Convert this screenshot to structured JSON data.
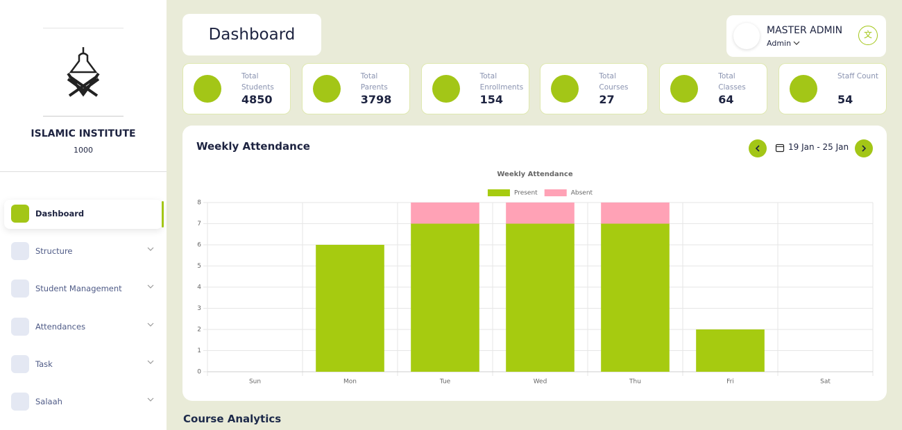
{
  "sidebar": {
    "institute_name": "ISLAMIC INSTITUTE",
    "institute_code": "1000",
    "menu": [
      "Dashboard",
      "Structure",
      "Student Management",
      "Attendances",
      "Task",
      "Salaah"
    ]
  },
  "header": {
    "title": "Dashboard",
    "user_name": "MASTER ADMIN",
    "user_role": "Admin"
  },
  "stats": [
    {
      "label": "Total Students",
      "value": 4850
    },
    {
      "label": "Total Parents",
      "value": 3798
    },
    {
      "label": "Total Enrollments",
      "value": 154
    },
    {
      "label": "Total Courses",
      "value": 27
    },
    {
      "label": "Total Classes",
      "value": 64
    },
    {
      "label": "Staff Count",
      "value": 54
    }
  ],
  "attendance_card": {
    "title": "Weekly Attendance",
    "date_range": "19 Jan - 25 Jan"
  },
  "chart_data": {
    "type": "bar",
    "stacked": true,
    "title": "Weekly Attendance",
    "categories": [
      "Sun",
      "Mon",
      "Tue",
      "Wed",
      "Thu",
      "Fri",
      "Sat"
    ],
    "series": [
      {
        "name": "Present",
        "color": "#a6cb10",
        "values": [
          0,
          6,
          7,
          7,
          7,
          2,
          0
        ]
      },
      {
        "name": "Absent",
        "color": "#ffa2b6",
        "values": [
          0,
          0,
          1,
          1,
          1,
          0,
          0
        ]
      }
    ],
    "ylim": [
      0,
      8
    ],
    "yticks": [
      0,
      1,
      2,
      3,
      4,
      5,
      6,
      7,
      8
    ],
    "grid": true,
    "legend": "top"
  },
  "section_title": "Course Analytics"
}
